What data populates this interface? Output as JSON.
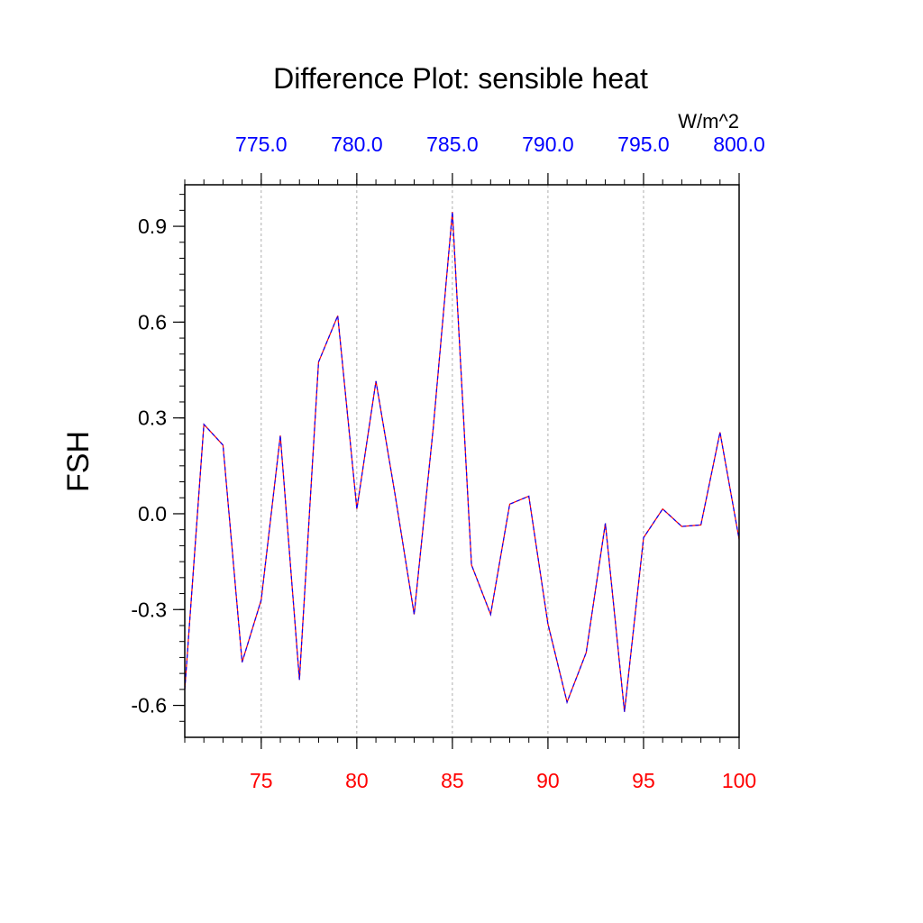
{
  "chart_data": {
    "type": "line",
    "title": "Difference Plot: sensible heat",
    "units": "W/m^2",
    "ylabel": "FSH",
    "xlabel": "",
    "xlim": [
      71,
      100
    ],
    "ylim": [
      -0.7,
      1.03
    ],
    "grid": "x-dashed",
    "bottom_axis": {
      "ticks": [
        75,
        80,
        85,
        90,
        95,
        100
      ],
      "tick_labels": [
        "75",
        "80",
        "85",
        "90",
        "95",
        "100"
      ],
      "color": "#ff0000"
    },
    "top_axis": {
      "ticks": [
        75,
        80,
        85,
        90,
        95,
        100
      ],
      "tick_labels": [
        "775.0",
        "780.0",
        "785.0",
        "790.0",
        "795.0",
        "800.0"
      ],
      "color": "#0000ff"
    },
    "left_axis": {
      "ticks": [
        0.9,
        0.6,
        0.3,
        0.0,
        -0.3,
        -0.6
      ],
      "tick_labels": [
        "0.9",
        "0.6",
        "0.3",
        "0.0",
        "-0.3",
        "-0.6"
      ],
      "color": "#000000"
    },
    "series": [
      {
        "color": "#ff0000",
        "style": "solid",
        "x": [
          71,
          72,
          73,
          74,
          75,
          76,
          77,
          78,
          79,
          80,
          81,
          82,
          83,
          84,
          85,
          86,
          87,
          88,
          89,
          90,
          91,
          92,
          93,
          94,
          95,
          96,
          97,
          98,
          99,
          100
        ],
        "values": [
          -0.55,
          0.28,
          0.215,
          -0.465,
          -0.27,
          0.245,
          -0.52,
          0.475,
          0.62,
          0.015,
          0.415,
          0.06,
          -0.315,
          0.27,
          0.945,
          -0.16,
          -0.315,
          0.03,
          0.055,
          -0.345,
          -0.59,
          -0.435,
          -0.03,
          -0.62,
          -0.075,
          0.015,
          -0.04,
          -0.035,
          0.255,
          -0.08
        ]
      },
      {
        "color": "#0000ff",
        "style": "dashed",
        "x": [
          71,
          72,
          73,
          74,
          75,
          76,
          77,
          78,
          79,
          80,
          81,
          82,
          83,
          84,
          85,
          86,
          87,
          88,
          89,
          90,
          91,
          92,
          93,
          94,
          95,
          96,
          97,
          98,
          99,
          100
        ],
        "values": [
          -0.55,
          0.28,
          0.215,
          -0.465,
          -0.27,
          0.245,
          -0.52,
          0.475,
          0.62,
          0.015,
          0.415,
          0.06,
          -0.315,
          0.27,
          0.945,
          -0.16,
          -0.315,
          0.03,
          0.055,
          -0.345,
          -0.59,
          -0.435,
          -0.03,
          -0.62,
          -0.075,
          0.015,
          -0.04,
          -0.035,
          0.255,
          -0.08
        ]
      }
    ]
  }
}
